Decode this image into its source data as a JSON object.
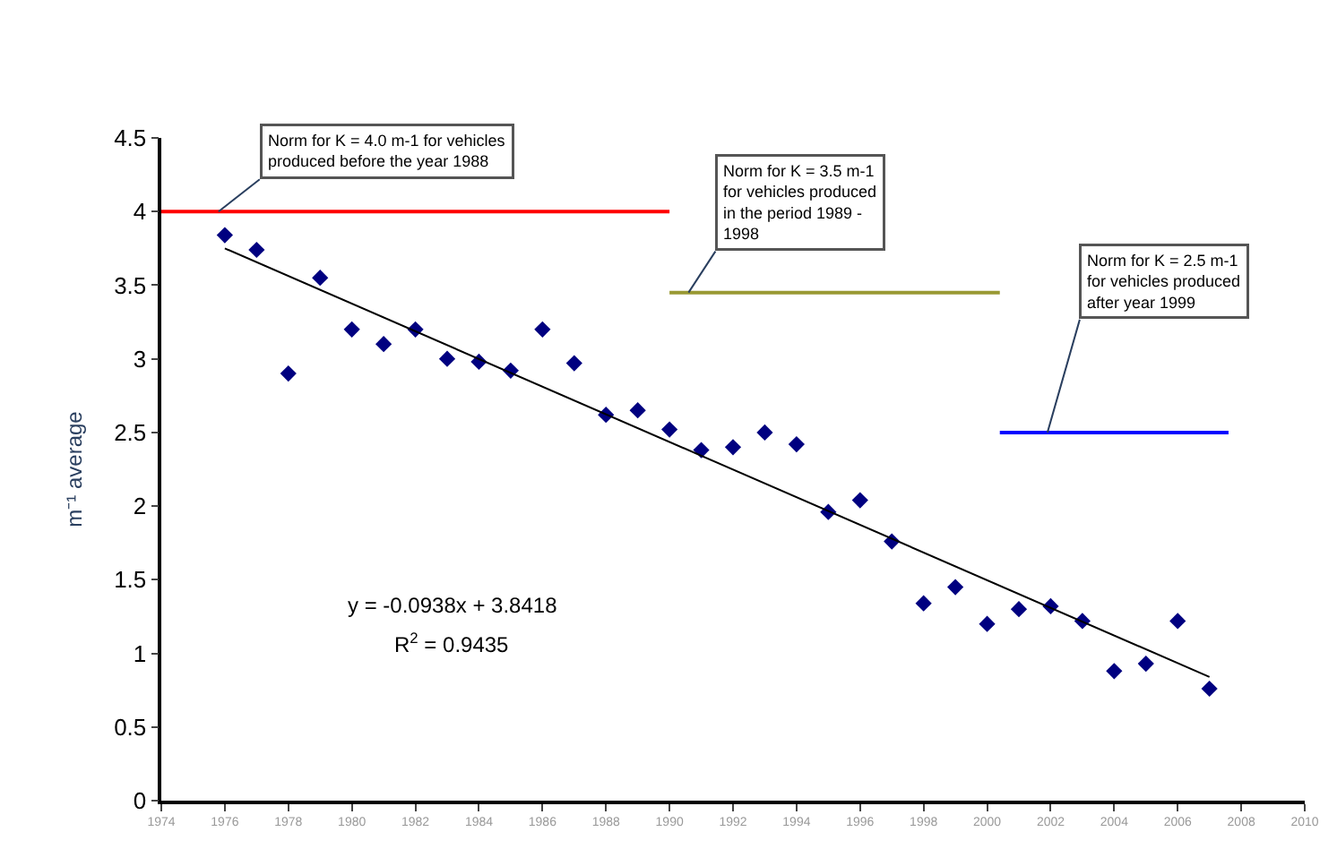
{
  "chart_data": {
    "type": "scatter",
    "ylabel": "m⁻¹ average",
    "x": [
      1976,
      1977,
      1978,
      1979,
      1980,
      1981,
      1982,
      1983,
      1984,
      1985,
      1986,
      1987,
      1988,
      1989,
      1990,
      1991,
      1992,
      1993,
      1994,
      1995,
      1996,
      1997,
      1998,
      1999,
      2000,
      2001,
      2002,
      2003,
      2004,
      2005,
      2006,
      2007
    ],
    "series": [
      {
        "color": "#000080",
        "values": [
          3.84,
          3.74,
          2.9,
          3.55,
          3.2,
          3.1,
          3.2,
          3.0,
          2.98,
          2.92,
          3.2,
          2.97,
          2.62,
          2.65,
          2.52,
          2.38,
          2.4,
          2.5,
          2.42,
          1.96,
          2.04,
          1.76,
          1.34,
          1.45,
          1.2,
          1.3,
          1.32,
          1.22,
          0.88,
          0.93,
          1.22,
          0.76
        ]
      },
      {
        "type": "line",
        "marker": "none",
        "color": "#000000",
        "x": [
          1976,
          2007
        ],
        "values": [
          3.75,
          0.84
        ]
      },
      {
        "type": "line",
        "marker": "none",
        "color": "#ff0000",
        "x": [
          1974,
          1990
        ],
        "values": [
          4,
          4
        ]
      },
      {
        "type": "line",
        "marker": "none",
        "color": "#999933",
        "x": [
          1990,
          2000.4
        ],
        "values": [
          3.45,
          3.45
        ]
      },
      {
        "type": "line",
        "marker": "none",
        "color": "#0000ff",
        "x": [
          2000.4,
          2007.6
        ],
        "values": [
          2.5,
          2.5
        ]
      }
    ],
    "annotations": [
      {
        "text": "Norm for K = 4.0 m-1 for vehicles\nproduced before the year 1988",
        "x": 1975.8,
        "y": 4
      },
      {
        "text": "Norm for K = 3.5 m-1\nfor vehicles produced\nin the period 1989 -\n1998",
        "x": 1990.6,
        "y": 3.45
      },
      {
        "text": "Norm for K = 2.5 m-1\nfor vehicles produced\nafter year 1999",
        "x": 2001.9,
        "y": 2.5
      },
      "y = -0.0938x + 3.8418",
      "R$^{2}$ = 0.9435"
    ],
    "xlim": [
      1974,
      2010
    ],
    "xticks": [
      1974,
      1976,
      1978,
      1980,
      1982,
      1984,
      1986,
      1988,
      1990,
      1992,
      1994,
      1996,
      1998,
      2000,
      2002,
      2004,
      2006,
      2008,
      2010
    ],
    "ylim": [
      0,
      4.5
    ],
    "yticks": [
      0,
      0.5,
      1,
      1.5,
      2,
      2.5,
      3,
      3.5,
      4,
      4.5
    ],
    "marker": "diamond"
  }
}
